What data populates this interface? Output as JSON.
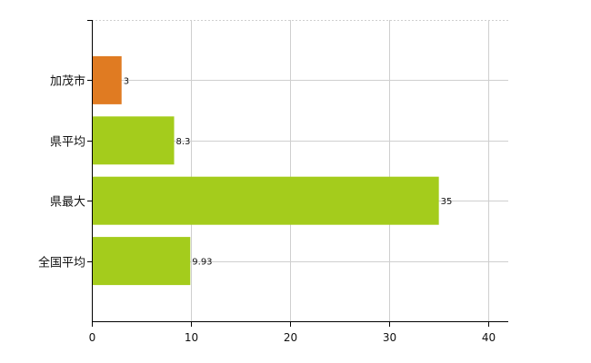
{
  "chart_data": {
    "type": "bar",
    "orientation": "horizontal",
    "categories": [
      "加茂市",
      "県平均",
      "県最大",
      "全国平均"
    ],
    "values": [
      3,
      8.3,
      35,
      9.93
    ],
    "value_labels": [
      "3",
      "8.3",
      "35",
      "9.93"
    ],
    "xlim": [
      0,
      42
    ],
    "xticks": [
      0,
      10,
      20,
      30,
      40
    ],
    "xtick_labels": [
      "0",
      "10",
      "20",
      "30",
      "40"
    ],
    "grid": true,
    "title": "",
    "xlabel": "",
    "ylabel": "",
    "colors": {
      "highlight": "#e07b22",
      "default": "#a4cc1c",
      "grid": "#cfcfcf",
      "axis": "#000000"
    }
  }
}
